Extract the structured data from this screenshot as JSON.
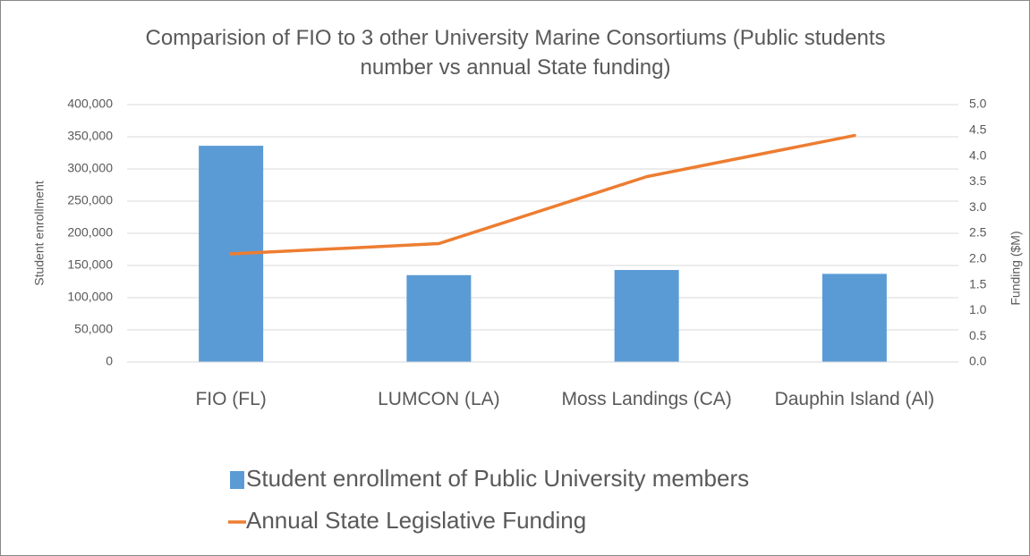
{
  "chart_data": {
    "type": "bar+line",
    "title": "Comparision of FIO to 3 other University Marine Consortiums (Public students number vs annual State funding)",
    "ylabel": "Student enrollment",
    "y2label": "Funding ($M)",
    "categories": [
      "FIO (FL)",
      "LUMCON (LA)",
      "Moss Landings (CA)",
      "Dauphin Island (Al)"
    ],
    "series": [
      {
        "name": "Student enrollment of Public University members",
        "type": "bar",
        "color": "#5b9bd5",
        "values": [
          336000,
          135000,
          143000,
          137000
        ]
      },
      {
        "name": "Annual State Legislative Funding",
        "type": "line",
        "axis": "y2",
        "color": "#ed7d31",
        "values": [
          2.1,
          2.3,
          3.6,
          4.4
        ]
      }
    ],
    "ylim": [
      0,
      400000
    ],
    "yticks": [
      0,
      {
        "value": 50000,
        "label": "50,000"
      },
      {
        "value": 100000,
        "label": "100,000"
      },
      {
        "value": 150000,
        "label": "150,000"
      },
      {
        "value": 200000,
        "label": "200,000"
      },
      {
        "value": 250000,
        "label": "250,000"
      },
      {
        "value": 300000,
        "label": "300,000"
      },
      {
        "value": 350000,
        "label": "350,000"
      },
      {
        "value": 400000,
        "label": "400,000"
      }
    ],
    "y2lim": [
      0,
      5
    ],
    "y2ticks": [
      {
        "value": 0,
        "label": "0.0"
      },
      0.5,
      {
        "value": 1,
        "label": "1.0"
      },
      1.5,
      {
        "value": 2,
        "label": "2.0"
      },
      2.5,
      {
        "value": 3,
        "label": "3.0"
      },
      3.5,
      {
        "value": 4,
        "label": "4.0"
      },
      4.5,
      {
        "value": 5,
        "label": "5.0"
      }
    ],
    "grid": true,
    "legend": "bottom"
  }
}
